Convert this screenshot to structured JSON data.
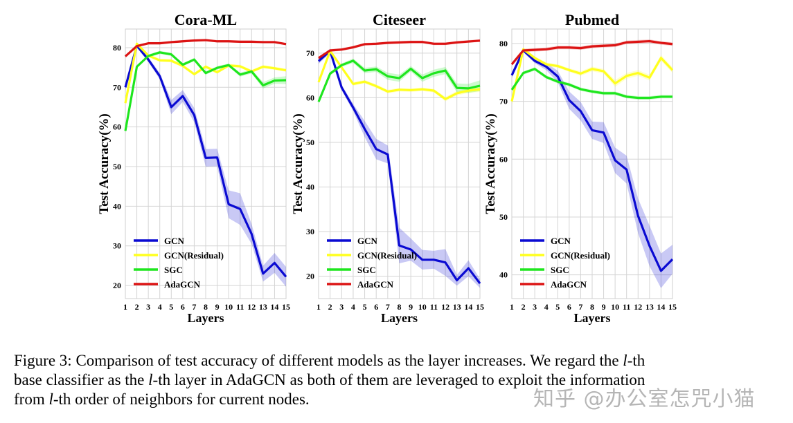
{
  "chart_data": [
    {
      "type": "line",
      "title": "Cora-ML",
      "xlabel": "Layers",
      "ylabel": "Test Accuracy(%)",
      "x": [
        1,
        2,
        3,
        4,
        5,
        6,
        7,
        8,
        9,
        10,
        11,
        12,
        13,
        14,
        15
      ],
      "ylim": [
        16.7,
        84.7
      ],
      "yticks": [
        20,
        30,
        40,
        50,
        60,
        70,
        80
      ],
      "grid": true,
      "legend": "bottom-left",
      "series": [
        {
          "name": "GCN",
          "color": "#0a0ad2",
          "values": [
            70,
            80.5,
            77,
            72.8,
            65,
            67.8,
            63,
            52.2,
            52.3,
            40.5,
            39.3,
            33,
            23,
            25.7,
            22.2
          ],
          "band": [
            0.8,
            0.5,
            0.6,
            0.8,
            1.8,
            1.5,
            1.8,
            2.2,
            2.2,
            3.5,
            4,
            2.5,
            2,
            2.5,
            2.5
          ]
        },
        {
          "name": "GCN(Residual)",
          "color": "#ffff1e",
          "values": [
            66,
            81,
            78,
            76.8,
            76.7,
            75.4,
            73.3,
            75.2,
            73.8,
            75.5,
            75.3,
            74,
            75.2,
            74.8,
            74.3
          ],
          "band": [
            0.5,
            0.4,
            0.4,
            0.4,
            0.4,
            0.4,
            0.4,
            0.4,
            0.4,
            0.4,
            0.4,
            0.4,
            0.4,
            0.4,
            0.4
          ]
        },
        {
          "name": "SGC",
          "color": "#1ee61e",
          "values": [
            59,
            75.2,
            77.9,
            78.8,
            78.3,
            75.7,
            77,
            73.6,
            74.9,
            75.6,
            73.2,
            74,
            70.5,
            71.7,
            71.8
          ],
          "band": [
            0.4,
            0.4,
            0.4,
            0.4,
            0.4,
            0.4,
            0.4,
            0.4,
            0.4,
            0.4,
            0.5,
            0.5,
            0.8,
            0.8,
            1
          ]
        },
        {
          "name": "AdaGCN",
          "color": "#dc1414",
          "values": [
            77.8,
            80.4,
            81.1,
            81.1,
            81.4,
            81.6,
            81.8,
            81.9,
            81.6,
            81.6,
            81.5,
            81.5,
            81.4,
            81.4,
            80.9
          ],
          "band": [
            0.3,
            0.3,
            0.3,
            0.3,
            0.3,
            0.3,
            0.3,
            0.3,
            0.3,
            0.3,
            0.3,
            0.3,
            0.3,
            0.3,
            0.3
          ]
        }
      ]
    },
    {
      "type": "line",
      "title": "Citeseer",
      "xlabel": "Layers",
      "ylabel": "Test Accuracy(%)",
      "x": [
        1,
        2,
        3,
        4,
        5,
        6,
        7,
        8,
        9,
        10,
        11,
        12,
        13,
        14,
        15
      ],
      "ylim": [
        15.0,
        75.4
      ],
      "yticks": [
        20,
        30,
        40,
        50,
        60,
        70
      ],
      "grid": true,
      "legend": "bottom-left",
      "series": [
        {
          "name": "GCN",
          "color": "#0a0ad2",
          "values": [
            68.2,
            70.5,
            62.3,
            57.8,
            53,
            48.5,
            47.3,
            26.9,
            26,
            23.7,
            23.7,
            23.1,
            19.1,
            21.8,
            18.4
          ],
          "band": [
            0.6,
            0.5,
            0.6,
            0.8,
            1.8,
            2.3,
            2,
            4,
            2.5,
            2.2,
            2,
            3,
            1.2,
            1.8,
            1
          ]
        },
        {
          "name": "GCN(Residual)",
          "color": "#ffff1e",
          "values": [
            63.5,
            70.5,
            66.8,
            63.1,
            63.6,
            62.6,
            61.4,
            61.8,
            61.7,
            61.9,
            61.6,
            59.7,
            61,
            61.6,
            61.9
          ],
          "band": [
            0.4,
            0.4,
            0.4,
            0.4,
            0.4,
            0.4,
            0.4,
            0.4,
            0.4,
            0.4,
            0.4,
            0.5,
            0.5,
            0.5,
            0.6
          ]
        },
        {
          "name": "SGC",
          "color": "#1ee61e",
          "values": [
            59.1,
            65.4,
            67.3,
            68.3,
            66.1,
            66.4,
            64.8,
            64.4,
            66.5,
            64.4,
            65.5,
            66.1,
            62.2,
            62.1,
            62.7
          ],
          "band": [
            0.4,
            0.4,
            0.4,
            0.5,
            0.6,
            0.6,
            0.8,
            0.8,
            0.6,
            0.8,
            0.8,
            0.8,
            1,
            1,
            1.2
          ]
        },
        {
          "name": "AdaGCN",
          "color": "#dc1414",
          "values": [
            68.9,
            70.6,
            70.8,
            71.3,
            72,
            72.1,
            72.3,
            72.4,
            72.5,
            72.5,
            72.1,
            72.1,
            72.4,
            72.6,
            72.8
          ],
          "band": [
            0.3,
            0.3,
            0.3,
            0.3,
            0.3,
            0.3,
            0.3,
            0.3,
            0.3,
            0.3,
            0.3,
            0.3,
            0.3,
            0.3,
            0.3
          ]
        }
      ]
    },
    {
      "type": "line",
      "title": "Pubmed",
      "xlabel": "Layers",
      "ylabel": "Test Accuracy(%)",
      "x": [
        1,
        2,
        3,
        4,
        5,
        6,
        7,
        8,
        9,
        10,
        11,
        12,
        13,
        14,
        15
      ],
      "ylim": [
        35.9,
        82.5
      ],
      "yticks": [
        40,
        50,
        60,
        70,
        80
      ],
      "grid": true,
      "legend": "bottom-left",
      "series": [
        {
          "name": "GCN",
          "color": "#0a0ad2",
          "values": [
            74.5,
            78.8,
            77,
            76,
            74.3,
            70.2,
            68.3,
            65,
            64.6,
            59.8,
            58.2,
            50.2,
            45,
            40.7,
            42.7
          ],
          "band": [
            0.5,
            0.3,
            0.4,
            0.6,
            1,
            1.5,
            1.6,
            1.5,
            1.8,
            2.2,
            2.4,
            3,
            3.5,
            3,
            2.5
          ]
        },
        {
          "name": "GCN(Residual)",
          "color": "#ffff1e",
          "values": [
            70,
            79,
            77.5,
            76.4,
            76.1,
            75.4,
            74.8,
            75.6,
            75.2,
            73.1,
            74.4,
            74.9,
            74.1,
            77.5,
            75.4
          ],
          "band": [
            0.8,
            0.3,
            0.3,
            0.3,
            0.3,
            0.3,
            0.4,
            0.4,
            0.4,
            0.6,
            0.5,
            0.5,
            0.5,
            0.5,
            0.5
          ]
        },
        {
          "name": "SGC",
          "color": "#1ee61e",
          "values": [
            72,
            74.9,
            75.6,
            74.2,
            73.4,
            72.9,
            72.1,
            71.7,
            71.4,
            71.4,
            70.8,
            70.6,
            70.6,
            70.8,
            70.8
          ],
          "band": [
            0.3,
            0.3,
            0.3,
            0.3,
            0.3,
            0.3,
            0.3,
            0.3,
            0.3,
            0.3,
            0.3,
            0.3,
            0.3,
            0.3,
            0.3
          ]
        },
        {
          "name": "AdaGCN",
          "color": "#dc1414",
          "values": [
            76.4,
            78.8,
            78.9,
            79,
            79.3,
            79.3,
            79.2,
            79.5,
            79.6,
            79.7,
            80.2,
            80.3,
            80.4,
            80.1,
            79.9
          ],
          "band": [
            0.3,
            0.3,
            0.3,
            0.3,
            0.3,
            0.3,
            0.3,
            0.3,
            0.3,
            0.3,
            0.3,
            0.3,
            0.3,
            0.3,
            0.3
          ]
        }
      ]
    }
  ],
  "caption": {
    "line1_a": "Figure 3: Comparison of test accuracy of different models as the layer increases. We regard the ",
    "l": "l",
    "line1_b": "-th",
    "line2_a": "base classifier as the ",
    "line2_b": "-th layer in AdaGCN as both of them are leveraged to exploit the information",
    "line3_a": "from ",
    "line3_b": "-th order of neighbors for current nodes."
  },
  "watermark": "知乎 @办公室怎咒小猫"
}
